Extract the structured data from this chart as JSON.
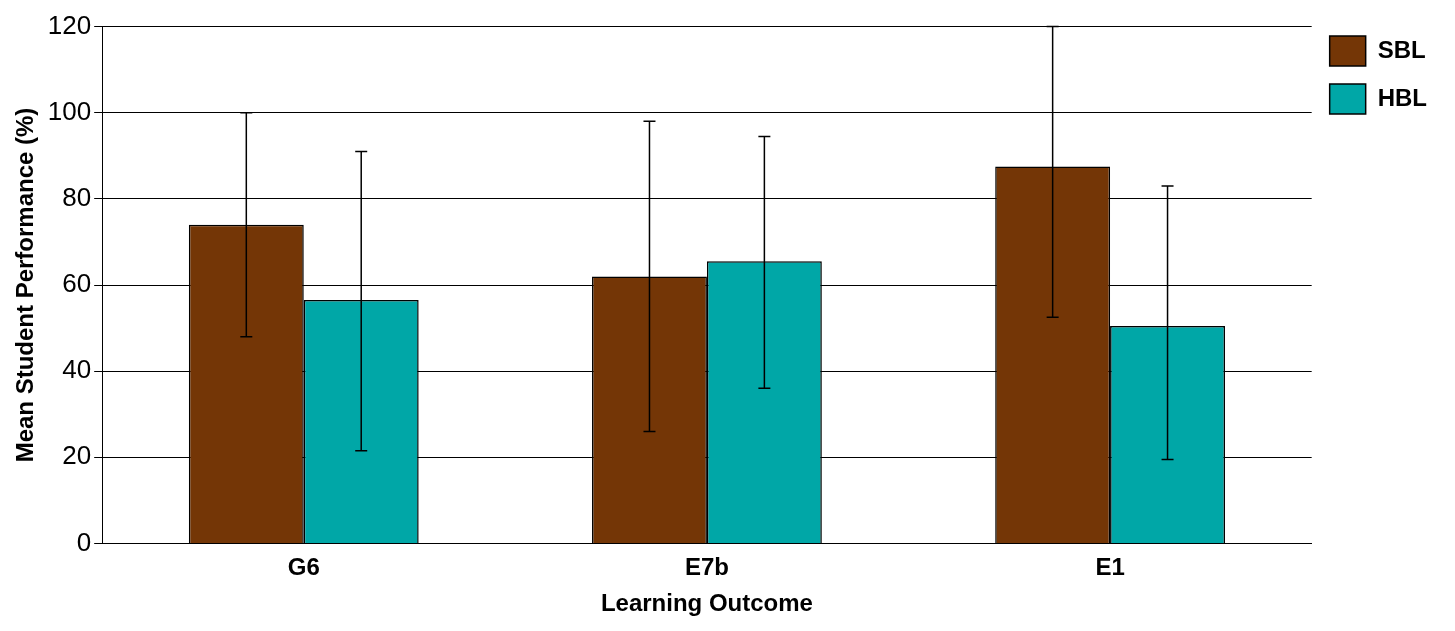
{
  "chart_data": {
    "type": "bar",
    "xlabel": "Learning Outcome",
    "ylabel": "Mean Student Performance (%)",
    "categories": [
      "G6",
      "E7b",
      "E1"
    ],
    "series": [
      {
        "name": "SBL",
        "color": "#743606",
        "values": [
          74,
          62,
          87.5
        ],
        "errors": [
          [
            48,
            100
          ],
          [
            26,
            98
          ],
          [
            52.5,
            120
          ]
        ]
      },
      {
        "name": "HBL",
        "color": "#00a7a7",
        "values": [
          56.5,
          65.5,
          50.5
        ],
        "errors": [
          [
            21.5,
            91
          ],
          [
            36,
            94.5
          ],
          [
            19.5,
            83
          ]
        ]
      }
    ],
    "ylim": [
      0,
      120
    ],
    "yticks": [
      0,
      20,
      40,
      60,
      80,
      100,
      120
    ],
    "grid": "y",
    "legend": "top right"
  }
}
